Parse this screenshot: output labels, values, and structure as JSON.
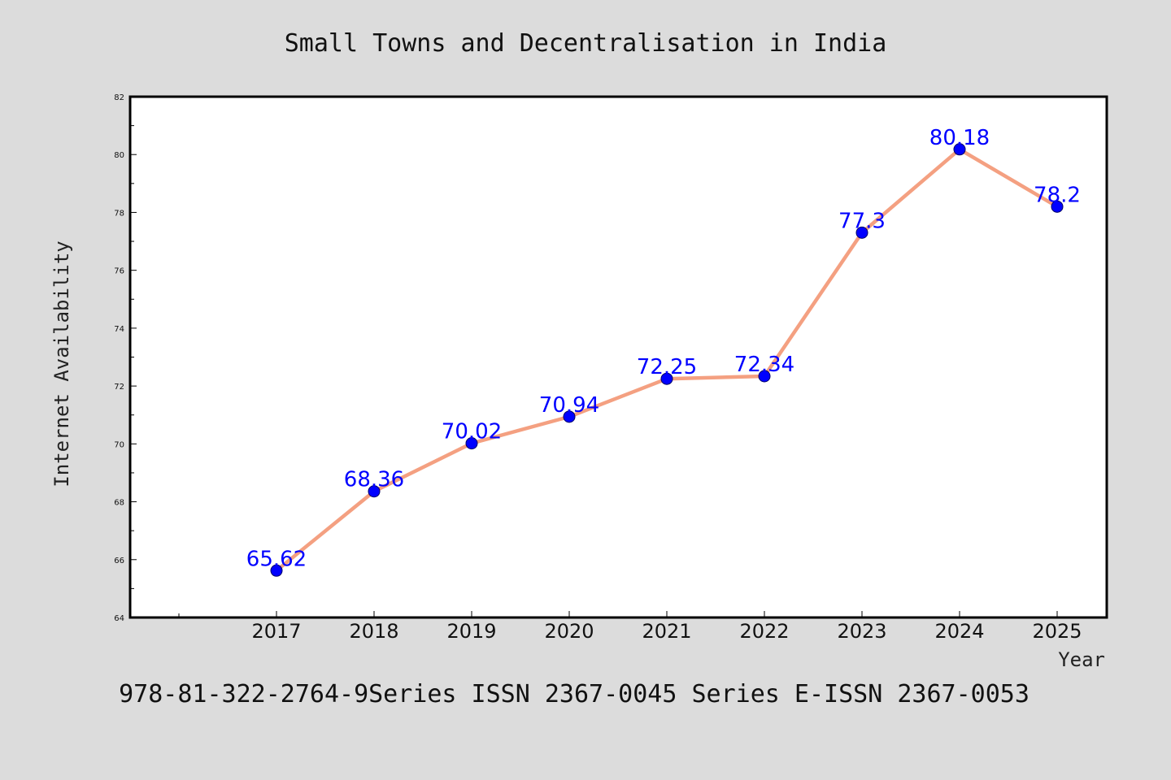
{
  "chart_data": {
    "type": "line",
    "title": "Small Towns and Decentralisation in India",
    "xlabel": "Year",
    "ylabel": "Internet Availability",
    "categories": [
      "2017",
      "2018",
      "2019",
      "2020",
      "2021",
      "2022",
      "2023",
      "2024",
      "2025"
    ],
    "series": [
      {
        "values": [
          65.62,
          68.36,
          70.02,
          70.94,
          72.25,
          72.34,
          77.3,
          80.18,
          78.2
        ],
        "data_labels": [
          "65.62",
          "68.36",
          "70.02",
          "70.94",
          "72.25",
          "72.34",
          "77.3",
          "80.18",
          "78.2"
        ],
        "line_color": "#f4a081",
        "marker_color": "#0000ff"
      }
    ],
    "ylim": [
      64,
      82
    ],
    "yticks": [
      "64",
      "66",
      "68",
      "70",
      "72",
      "74",
      "76",
      "78",
      "80",
      "82"
    ],
    "grid": false,
    "legend": "none"
  },
  "footer": "978-81-322-2764-9Series ISSN 2367-0045 Series E-ISSN 2367-0053",
  "colors": {
    "background": "#dcdcdc",
    "plot_background": "#ffffff"
  }
}
